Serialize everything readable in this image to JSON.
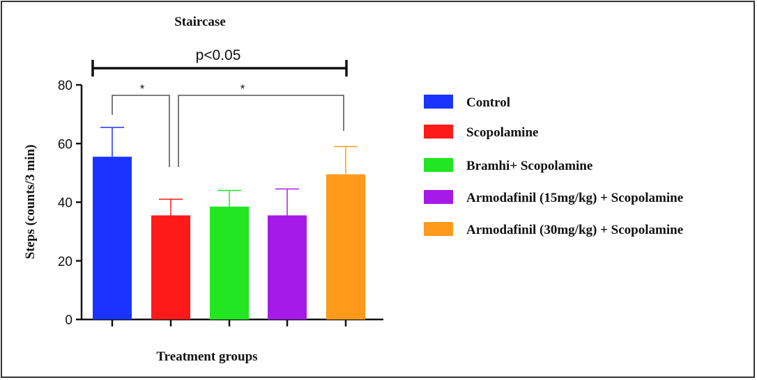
{
  "chart_data": {
    "type": "bar",
    "title": "Staircase",
    "xlabel": "Treatment groups",
    "ylabel": "Steps (counts/3 min)",
    "ylim": [
      0,
      80
    ],
    "yticks": [
      "0",
      "20",
      "40",
      "60",
      "80"
    ],
    "categories": [
      "Control",
      "Scopolamine",
      "Bramhi+ Scopolamine",
      "Armodafinil (15mg/kg) + Scopolamine",
      "Armodafinil (30mg/kg) + Scopolamine"
    ],
    "values": [
      55.5,
      35.5,
      38.5,
      35.5,
      49.5
    ],
    "errors": [
      10,
      5.5,
      5.5,
      9,
      9.5
    ],
    "colors": [
      "#1a33ff",
      "#ff1a1a",
      "#22e622",
      "#a51ae6",
      "#ff9a1a"
    ],
    "significance": {
      "overall": "p<0.05",
      "pair_marker": "*"
    },
    "legend_position": "right",
    "grid": false
  }
}
